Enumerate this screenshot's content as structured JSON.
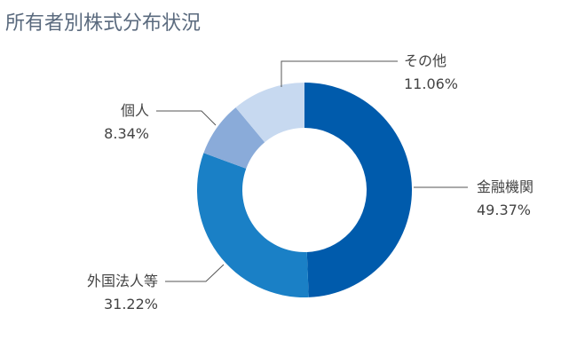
{
  "title": "所有者別株式分布状況",
  "chart_data": {
    "type": "pie",
    "subtype": "donut",
    "title": "所有者別株式分布状況",
    "categories": [
      "金融機関",
      "外国法人等",
      "個人",
      "その他"
    ],
    "values": [
      49.37,
      31.22,
      8.34,
      11.06
    ],
    "unit": "%",
    "colors": [
      "#005bac",
      "#1a80c6",
      "#8aabd9",
      "#c7d9f0"
    ],
    "start_angle_deg": 0,
    "direction": "clockwise",
    "legend": "none (callout labels)"
  },
  "labels": {
    "financial": {
      "name": "金融機関",
      "pct": "49.37%"
    },
    "foreign": {
      "name": "外国法人等",
      "pct": "31.22%"
    },
    "individual": {
      "name": "個人",
      "pct": "8.34%"
    },
    "other": {
      "name": "その他",
      "pct": "11.06%"
    }
  }
}
